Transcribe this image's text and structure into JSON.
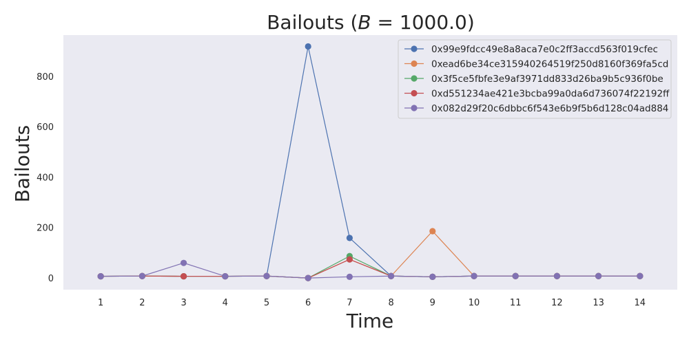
{
  "chart_data": {
    "type": "line",
    "title": "Bailouts (B = 1000.0)",
    "title_parts": {
      "prefix": "Bailouts (",
      "variable": "B",
      "suffix": " = 1000.0)"
    },
    "xlabel": "Time",
    "ylabel": "Bailouts",
    "x": [
      1,
      2,
      3,
      4,
      5,
      6,
      7,
      8,
      9,
      10,
      11,
      12,
      13,
      14
    ],
    "xlim": [
      0.1,
      14.9
    ],
    "ylim": [
      -45,
      965
    ],
    "yticks": [
      0,
      200,
      400,
      600,
      800
    ],
    "grid": false,
    "legend_position": "top-right",
    "series": [
      {
        "name": "0x99e9fdcc49e8a8aca7e0c2ff3accd563f019cfec",
        "color": "#4c72b0",
        "values": [
          8,
          9,
          8,
          8,
          9,
          920,
          160,
          9,
          6,
          9,
          9,
          9,
          9,
          9
        ]
      },
      {
        "name": "0xead6be34ce315940264519f250d8160f369fa5cd",
        "color": "#dd8452",
        "values": [
          8,
          9,
          8,
          8,
          9,
          1,
          75,
          9,
          187,
          9,
          9,
          9,
          9,
          9
        ]
      },
      {
        "name": "0x3f5ce5fbfe3e9af3971dd833d26ba9b5c936f0be",
        "color": "#55a868",
        "values": [
          8,
          9,
          8,
          8,
          9,
          1,
          88,
          9,
          6,
          9,
          9,
          9,
          9,
          9
        ]
      },
      {
        "name": "0xd551234ae421e3bcba99a0da6d736074f22192ff",
        "color": "#c44e52",
        "values": [
          8,
          9,
          8,
          8,
          9,
          1,
          75,
          9,
          6,
          9,
          9,
          9,
          9,
          9
        ]
      },
      {
        "name": "0x082d29f20c6dbbc6f543e6b9f5b6d128c04ad884",
        "color": "#8172b3",
        "values": [
          8,
          9,
          61,
          8,
          9,
          1,
          6,
          9,
          6,
          9,
          9,
          9,
          9,
          9
        ]
      }
    ]
  }
}
